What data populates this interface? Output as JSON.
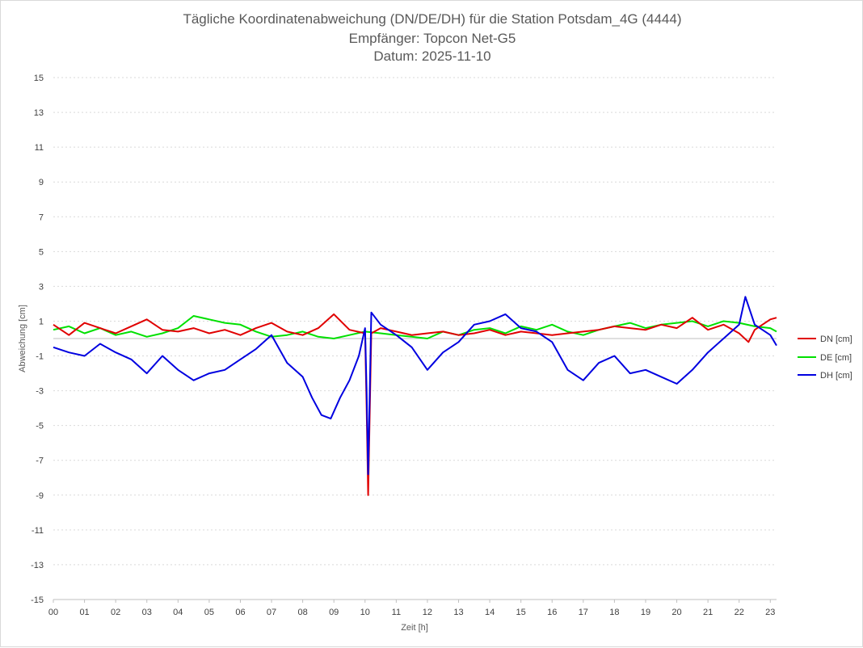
{
  "chart_data": {
    "type": "line",
    "title": [
      "Tägliche Koordinatenabweichung (DN/DE/DH) für die Station Potsdam_4G (4444)",
      "Empfänger: Topcon Net-G5",
      "Datum: 2025-11-10"
    ],
    "xlabel": "Zeit [h]",
    "ylabel": "Abweichung [cm]",
    "xlim": [
      0,
      23.2
    ],
    "ylim": [
      -15,
      15
    ],
    "x_ticks": [
      0,
      1,
      2,
      3,
      4,
      5,
      6,
      7,
      8,
      9,
      10,
      11,
      12,
      13,
      14,
      15,
      16,
      17,
      18,
      19,
      20,
      21,
      22,
      23
    ],
    "x_tick_labels": [
      "00",
      "01",
      "02",
      "03",
      "04",
      "05",
      "06",
      "07",
      "08",
      "09",
      "10",
      "11",
      "12",
      "13",
      "14",
      "15",
      "16",
      "17",
      "18",
      "19",
      "20",
      "21",
      "22",
      "23"
    ],
    "y_ticks": [
      15,
      13,
      11,
      9,
      7,
      5,
      3,
      1,
      -1,
      -3,
      -5,
      -7,
      -9,
      -11,
      -13,
      -15
    ],
    "y_tick_labels": [
      "15",
      "13",
      "11",
      "9",
      "7",
      "5",
      "3",
      "1",
      "-1",
      "-3",
      "-5",
      "-7",
      "-9",
      "-11",
      "-13",
      "-15"
    ],
    "grid": true,
    "legend_position": "right",
    "series": [
      {
        "name": "DN [cm]",
        "color": "#e00000",
        "x": [
          0,
          0.5,
          1,
          1.5,
          2,
          2.5,
          3,
          3.5,
          4,
          4.5,
          5,
          5.5,
          6,
          6.5,
          7,
          7.5,
          8,
          8.5,
          9,
          9.5,
          10,
          10.05,
          10.1,
          10.2,
          10.5,
          11,
          11.5,
          12,
          12.5,
          13,
          13.5,
          14,
          14.5,
          15,
          15.5,
          16,
          16.5,
          17,
          17.5,
          18,
          18.5,
          19,
          19.5,
          20,
          20.5,
          21,
          21.5,
          22,
          22.3,
          22.5,
          23,
          23.2
        ],
        "y": [
          0.8,
          0.2,
          0.9,
          0.6,
          0.3,
          0.7,
          1.1,
          0.5,
          0.4,
          0.6,
          0.3,
          0.5,
          0.2,
          0.6,
          0.9,
          0.4,
          0.2,
          0.6,
          1.4,
          0.5,
          0.3,
          -4,
          -9,
          0.3,
          0.6,
          0.4,
          0.2,
          0.3,
          0.4,
          0.2,
          0.3,
          0.5,
          0.2,
          0.4,
          0.3,
          0.2,
          0.3,
          0.4,
          0.5,
          0.7,
          0.6,
          0.5,
          0.8,
          0.6,
          1.2,
          0.5,
          0.8,
          0.3,
          -0.2,
          0.5,
          1.1,
          1.2
        ]
      },
      {
        "name": "DE [cm]",
        "color": "#00e000",
        "x": [
          0,
          0.5,
          1,
          1.5,
          2,
          2.5,
          3,
          3.5,
          4,
          4.5,
          5,
          5.5,
          6,
          6.5,
          7,
          7.5,
          8,
          8.5,
          9,
          9.5,
          10,
          10.5,
          11,
          11.5,
          12,
          12.5,
          13,
          13.5,
          14,
          14.5,
          15,
          15.5,
          16,
          16.5,
          17,
          17.5,
          18,
          18.5,
          19,
          19.5,
          20,
          20.5,
          21,
          21.5,
          22,
          22.5,
          23,
          23.2
        ],
        "y": [
          0.5,
          0.7,
          0.3,
          0.6,
          0.2,
          0.4,
          0.1,
          0.3,
          0.6,
          1.3,
          1.1,
          0.9,
          0.8,
          0.4,
          0.1,
          0.2,
          0.4,
          0.1,
          0.0,
          0.2,
          0.4,
          0.3,
          0.2,
          0.1,
          0.0,
          0.4,
          0.2,
          0.5,
          0.6,
          0.3,
          0.7,
          0.5,
          0.8,
          0.4,
          0.2,
          0.5,
          0.7,
          0.9,
          0.6,
          0.8,
          0.9,
          1.0,
          0.7,
          1.0,
          0.9,
          0.7,
          0.6,
          0.4
        ]
      },
      {
        "name": "DH [cm]",
        "color": "#0000e0",
        "x": [
          0,
          0.5,
          1,
          1.5,
          2,
          2.5,
          3,
          3.5,
          4,
          4.5,
          5,
          5.5,
          6,
          6.5,
          7,
          7.5,
          8,
          8.3,
          8.6,
          8.9,
          9.2,
          9.5,
          9.8,
          10,
          10.05,
          10.1,
          10.2,
          10.5,
          11,
          11.5,
          12,
          12.5,
          13,
          13.5,
          14,
          14.5,
          15,
          15.5,
          16,
          16.5,
          17,
          17.5,
          18,
          18.5,
          19,
          19.5,
          20,
          20.5,
          21,
          21.5,
          22,
          22.2,
          22.5,
          23,
          23.2
        ],
        "y": [
          -0.5,
          -0.8,
          -1.0,
          -0.3,
          -0.8,
          -1.2,
          -2.0,
          -1.0,
          -1.8,
          -2.4,
          -2.0,
          -1.8,
          -1.2,
          -0.6,
          0.2,
          -1.4,
          -2.2,
          -3.4,
          -4.4,
          -4.6,
          -3.4,
          -2.4,
          -1.0,
          0.6,
          -3.0,
          -7.8,
          1.5,
          0.8,
          0.2,
          -0.5,
          -1.8,
          -0.8,
          -0.2,
          0.8,
          1.0,
          1.4,
          0.6,
          0.4,
          -0.2,
          -1.8,
          -2.4,
          -1.4,
          -1.0,
          -2.0,
          -1.8,
          -2.2,
          -2.6,
          -1.8,
          -0.8,
          0.0,
          0.8,
          2.4,
          0.8,
          0.2,
          -0.4
        ]
      }
    ]
  }
}
